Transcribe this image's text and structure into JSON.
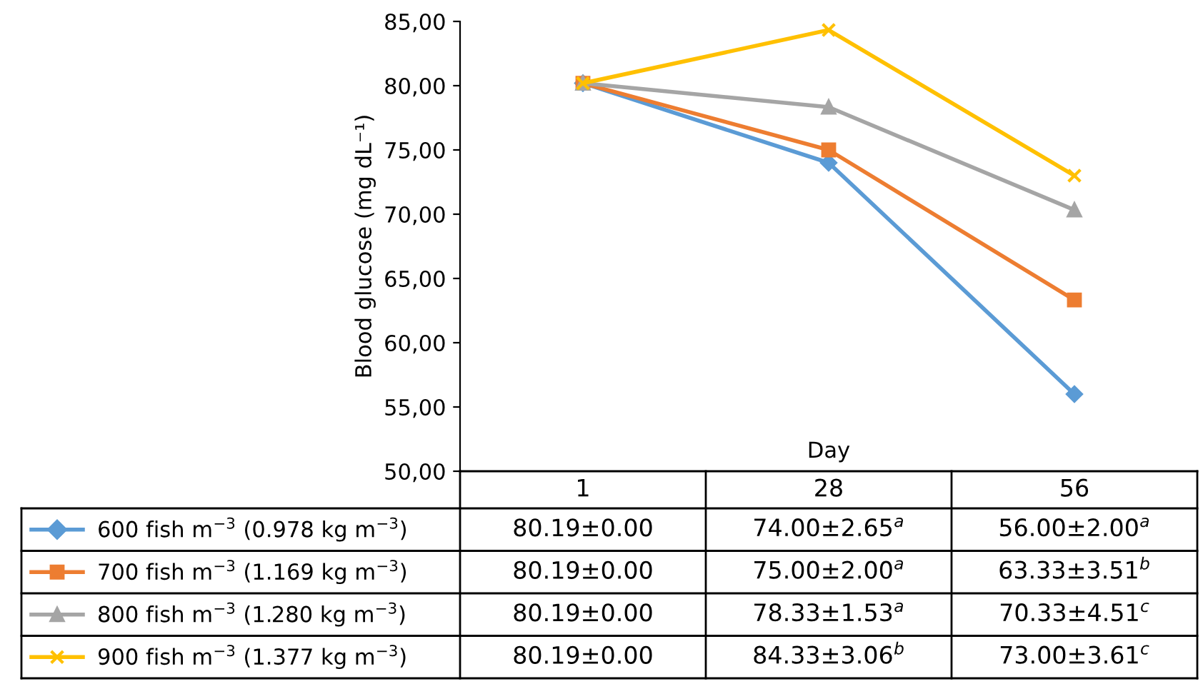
{
  "chart_data": {
    "type": "line",
    "ylabel": "Blood glucose (mg dL⁻¹)",
    "xlabel": "Day",
    "categories": [
      "1",
      "28",
      "56"
    ],
    "ylim": [
      50,
      85
    ],
    "yticks": [
      {
        "value": 50,
        "label": "50,00"
      },
      {
        "value": 55,
        "label": "55,00"
      },
      {
        "value": 60,
        "label": "60,00"
      },
      {
        "value": 65,
        "label": "65,00"
      },
      {
        "value": 70,
        "label": "70,00"
      },
      {
        "value": 75,
        "label": "75,00"
      },
      {
        "value": 80,
        "label": "80,00"
      },
      {
        "value": 85,
        "label": "85,00"
      }
    ],
    "data_labels": true,
    "legend": "bottom left",
    "series": [
      {
        "name": "600 fish m$^{−3}$ (0.978 kg m$^{−3}$)",
        "color": "#5b9bd5",
        "marker": "diamond",
        "values": [
          80.19,
          74.0,
          56.0
        ],
        "value_labels": [
          "80.19±0.00",
          "74.00±2.65$^{a}$",
          "56.00±2.00$^{a}$"
        ]
      },
      {
        "name": "700 fish m$^{−3}$ (1.169 kg m$^{−3}$)",
        "color": "#ed7d31",
        "marker": "square",
        "values": [
          80.19,
          75.0,
          63.33
        ],
        "value_labels": [
          "80.19±0.00",
          "75.00±2.00$^{a}$",
          "63.33±3.51$^{b}$"
        ]
      },
      {
        "name": "800 fish m$^{−3}$ (1.280 kg m$^{−3}$)",
        "color": "#a5a5a5",
        "marker": "triangle",
        "values": [
          80.19,
          78.33,
          70.33
        ],
        "value_labels": [
          "80.19±0.00",
          "78.33±1.53$^{a}$",
          "70.33±4.51$^{c}$"
        ]
      },
      {
        "name": "900 fish m$^{−3}$ (1.377 kg m$^{−3}$)",
        "color": "#ffc000",
        "marker": "cross",
        "values": [
          80.19,
          84.33,
          73.0
        ],
        "value_labels": [
          "80.19±0.00",
          "84.33±3.06$^{b}$",
          "73.00±3.61$^{c}$"
        ]
      }
    ]
  }
}
